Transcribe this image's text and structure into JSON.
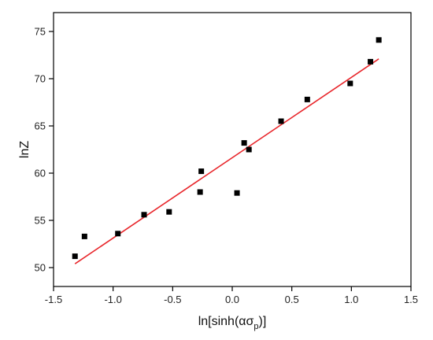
{
  "chart_data": {
    "type": "scatter",
    "title": "",
    "xlabel": {
      "prefix": "ln[sinh(ασ",
      "subscript": "p",
      "suffix": ")]"
    },
    "ylabel": "lnZ",
    "xlim": [
      -1.5,
      1.5
    ],
    "ylim": [
      48,
      77
    ],
    "x_ticks": [
      "-1.5",
      "-1.0",
      "-0.5",
      "0.0",
      "0.5",
      "1.0",
      "1.5"
    ],
    "y_ticks": [
      "50",
      "55",
      "60",
      "65",
      "70",
      "75"
    ],
    "grid": false,
    "legend": "none",
    "series": [
      {
        "kind": "points",
        "marker": "square",
        "color": "#000000",
        "points": [
          {
            "x": -1.32,
            "y": 51.2
          },
          {
            "x": -1.24,
            "y": 53.3
          },
          {
            "x": -0.96,
            "y": 53.6
          },
          {
            "x": -0.74,
            "y": 55.6
          },
          {
            "x": -0.53,
            "y": 55.9
          },
          {
            "x": -0.27,
            "y": 58.0
          },
          {
            "x": -0.26,
            "y": 60.2
          },
          {
            "x": 0.04,
            "y": 57.9
          },
          {
            "x": 0.1,
            "y": 63.2
          },
          {
            "x": 0.14,
            "y": 62.5
          },
          {
            "x": 0.41,
            "y": 65.5
          },
          {
            "x": 0.63,
            "y": 67.8
          },
          {
            "x": 0.99,
            "y": 69.5
          },
          {
            "x": 1.16,
            "y": 71.8
          },
          {
            "x": 1.23,
            "y": 74.1
          }
        ]
      },
      {
        "kind": "fit-line",
        "color": "#e8262b",
        "points": [
          {
            "x": -1.32,
            "y": 50.4
          },
          {
            "x": 1.23,
            "y": 72.1
          }
        ]
      }
    ]
  }
}
